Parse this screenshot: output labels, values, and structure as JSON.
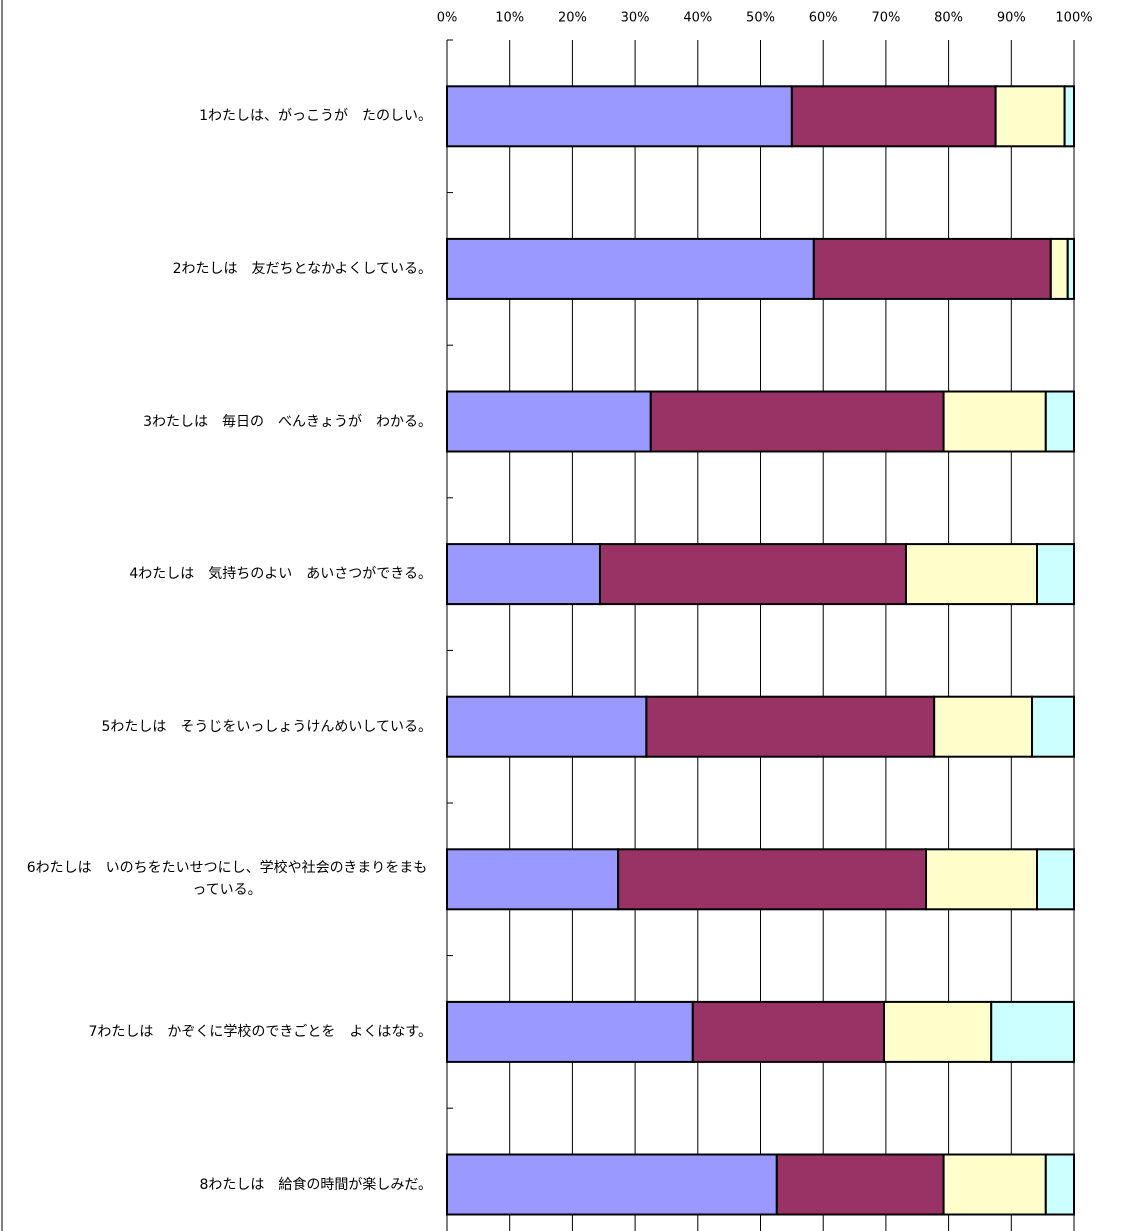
{
  "chart_data": {
    "type": "stacked-barh",
    "categories": [
      "1わたしは、がっこうが　たのしい。",
      "2わたしは　友だちとなかよくしている。",
      "3わたしは　毎日の　べんきょうが　わかる。",
      "4わたしは　気持ちのよい　あいさつができる。",
      "5わたしは　そうじをいっしょうけんめいしている。",
      "6わたしは　いのちをたいせつにし、学校や社会のきまりをまもっている。",
      "7わたしは　かぞくに学校のできごとを　よくはなす。",
      "8わたしは　給食の時間が楽しみだ。"
    ],
    "series": [
      {
        "color": "#9999ff",
        "values": [
          55,
          58.5,
          32.5,
          24.4,
          31.8,
          27.3,
          39.2,
          52.6
        ]
      },
      {
        "color": "#993366",
        "values": [
          32.5,
          37.8,
          46.7,
          48.8,
          45.9,
          49.1,
          30.5,
          26.6
        ]
      },
      {
        "color": "#ffffcc",
        "values": [
          11,
          2.7,
          16.3,
          20.9,
          15.6,
          17.7,
          17.1,
          16.3
        ]
      },
      {
        "color": "#ccffff",
        "values": [
          1.5,
          1.0,
          4.5,
          5.9,
          6.7,
          5.9,
          13.2,
          4.5
        ]
      }
    ],
    "xlim": [
      0,
      100
    ],
    "xticks": [
      {
        "value": 0,
        "label": "0%"
      },
      {
        "value": 10,
        "label": "10%"
      },
      {
        "value": 20,
        "label": "20%"
      },
      {
        "value": 30,
        "label": "30%"
      },
      {
        "value": 40,
        "label": "40%"
      },
      {
        "value": 50,
        "label": "50%"
      },
      {
        "value": 60,
        "label": "60%"
      },
      {
        "value": 70,
        "label": "70%"
      },
      {
        "value": 80,
        "label": "80%"
      },
      {
        "value": 90,
        "label": "90%"
      },
      {
        "value": 100,
        "label": "100%"
      }
    ],
    "grid": true
  }
}
